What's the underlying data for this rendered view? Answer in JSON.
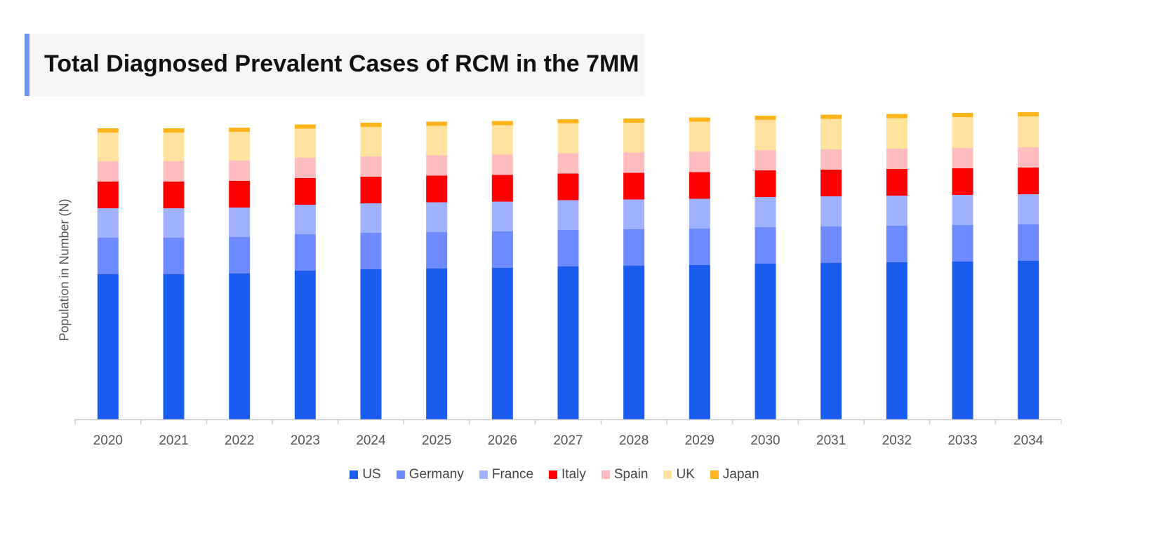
{
  "chart_data": {
    "type": "bar",
    "stacked": true,
    "title": "Total Diagnosed Prevalent Cases of RCM in the 7MM",
    "xlabel": "",
    "ylabel": "Population in Number (N)",
    "ylim": [
      0,
      4500
    ],
    "grid": false,
    "legend_position": "bottom",
    "categories": [
      "2020",
      "2021",
      "2022",
      "2023",
      "2024",
      "2025",
      "2026",
      "2027",
      "2028",
      "2029",
      "2030",
      "2031",
      "2032",
      "2033",
      "2034"
    ],
    "series": [
      {
        "name": "US",
        "color": "#1a5cf0",
        "values": [
          2070,
          2070,
          2080,
          2120,
          2140,
          2150,
          2160,
          2180,
          2190,
          2200,
          2220,
          2230,
          2240,
          2250,
          2260
        ]
      },
      {
        "name": "Germany",
        "color": "#6d8bff",
        "values": [
          520,
          520,
          520,
          520,
          520,
          520,
          520,
          520,
          520,
          520,
          520,
          520,
          520,
          520,
          520
        ]
      },
      {
        "name": "France",
        "color": "#a0b1ff",
        "values": [
          420,
          420,
          420,
          420,
          420,
          425,
          425,
          425,
          425,
          425,
          430,
          430,
          430,
          430,
          430
        ]
      },
      {
        "name": "Italy",
        "color": "#ff0000",
        "values": [
          380,
          380,
          380,
          380,
          380,
          380,
          380,
          380,
          380,
          380,
          380,
          380,
          380,
          380,
          380
        ]
      },
      {
        "name": "Spain",
        "color": "#ffbcbf",
        "values": [
          290,
          290,
          290,
          290,
          290,
          290,
          290,
          290,
          290,
          290,
          290,
          290,
          290,
          290,
          290
        ]
      },
      {
        "name": "UK",
        "color": "#ffe29e",
        "values": [
          410,
          410,
          410,
          415,
          420,
          420,
          420,
          425,
          425,
          430,
          430,
          435,
          435,
          440,
          440
        ]
      },
      {
        "name": "Japan",
        "color": "#ffb41e",
        "values": [
          60,
          60,
          60,
          60,
          60,
          60,
          60,
          60,
          60,
          60,
          60,
          60,
          60,
          60,
          60
        ]
      }
    ]
  }
}
